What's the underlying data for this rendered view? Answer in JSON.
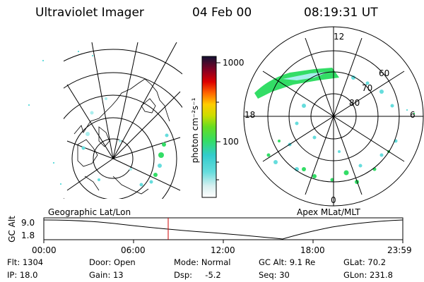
{
  "header": {
    "instrument": "Ultraviolet Imager",
    "date": "04 Feb 00",
    "time": "08:19:31 UT"
  },
  "colorbar": {
    "unit_label": "photon cm⁻²s⁻¹",
    "ticks": [
      "1000",
      "100"
    ]
  },
  "polar_plot": {
    "mlt_labels": [
      "12",
      "18",
      "6",
      "0"
    ],
    "lat_labels": [
      "60",
      "70",
      "80"
    ]
  },
  "maps": {
    "left_label": "Geographic Lat/Lon",
    "right_label": "Apex MLat/MLT"
  },
  "altitude_panel": {
    "axis_label": "GC Alt",
    "y_ticks": [
      "9.0",
      "1.8"
    ],
    "x_ticks": [
      "00:00",
      "06:00",
      "12:00",
      "18:00",
      "23:59"
    ],
    "current_time_marker": "08:19"
  },
  "info": {
    "row1": {
      "flt": "Flt:  1304",
      "door": "Door:  Open",
      "mode": "Mode:  Normal",
      "gc_alt": "GC Alt:  9.1 Re",
      "glat": "GLat:  70.2"
    },
    "row2": {
      "ip": "IP:  18.0",
      "gain": "Gain:  13",
      "dsp": "Dsp:     -5.2",
      "seq": "Seq:  30",
      "glon": "GLon:  231.8"
    }
  },
  "colors": {
    "aurora_green": "#33dd66",
    "aurora_cyan": "#66dddd",
    "aurora_light": "#aaeeee"
  }
}
